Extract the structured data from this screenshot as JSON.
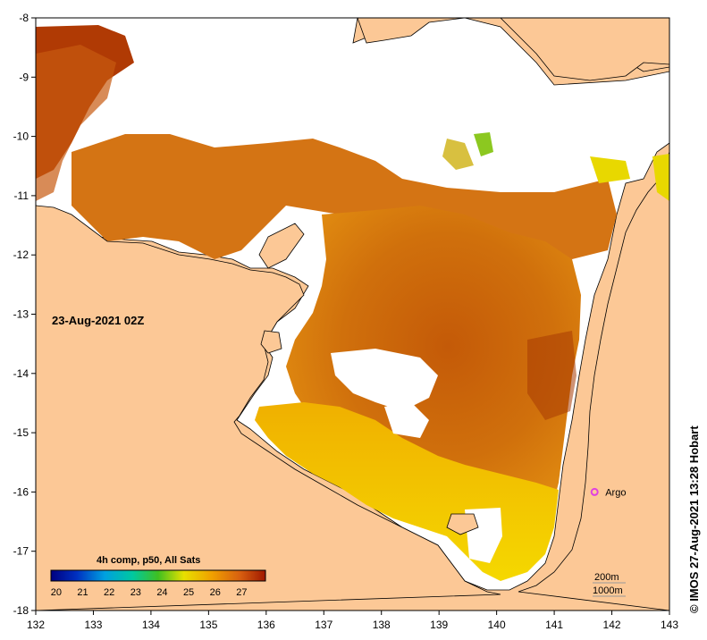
{
  "map": {
    "timestamp_label": "23-Aug-2021 02Z",
    "colorbar": {
      "title": "4h comp, p50, All Sats",
      "ticks": [
        "20",
        "21",
        "22",
        "23",
        "24",
        "25",
        "26",
        "27"
      ],
      "min": 19.8,
      "max": 27.9
    },
    "lon_ticks": [
      "132",
      "133",
      "134",
      "135",
      "136",
      "137",
      "138",
      "139",
      "140",
      "141",
      "142",
      "143"
    ],
    "lat_ticks": [
      "-8",
      "-9",
      "-10",
      "-11",
      "-12",
      "-13",
      "-14",
      "-15",
      "-16",
      "-17",
      "-18"
    ],
    "lon_range": [
      132,
      143
    ],
    "lat_range": [
      -8,
      -18
    ],
    "argo": {
      "label": "Argo",
      "lon": 141.7,
      "lat": -16.0,
      "color": "#e040e0"
    },
    "scale_bar": {
      "label_1": "200m",
      "label_2": "1000m"
    },
    "credit": "© IMOS 27-Aug-2021 13:28 Hobart",
    "colors": {
      "land": "#fcc896",
      "no_data": "#ffffff",
      "sst_dark": "#a83000",
      "sst_mid": "#d86a10",
      "sst_warm": "#f0a000",
      "sst_hot": "#f5d000"
    }
  }
}
